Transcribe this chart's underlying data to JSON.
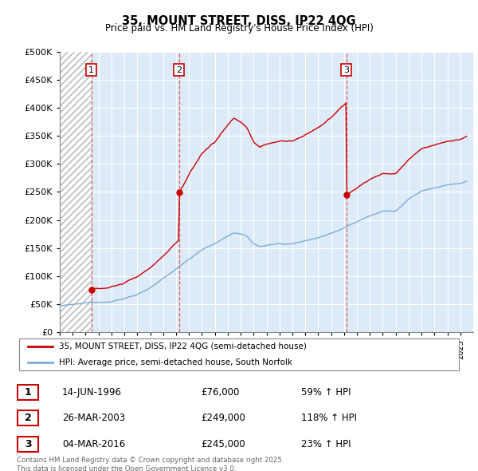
{
  "title": "35, MOUNT STREET, DISS, IP22 4QG",
  "subtitle": "Price paid vs. HM Land Registry's House Price Index (HPI)",
  "ylim": [
    0,
    500000
  ],
  "yticks": [
    0,
    50000,
    100000,
    150000,
    200000,
    250000,
    300000,
    350000,
    400000,
    450000,
    500000
  ],
  "xlim_start": 1994.0,
  "xlim_end": 2026.0,
  "sale_dates": [
    1996.45,
    2003.23,
    2016.17
  ],
  "sale_prices": [
    76000,
    249000,
    245000
  ],
  "sale_labels": [
    "1",
    "2",
    "3"
  ],
  "legend_line1": "35, MOUNT STREET, DISS, IP22 4QG (semi-detached house)",
  "legend_line2": "HPI: Average price, semi-detached house, South Norfolk",
  "annotation_rows": [
    [
      "1",
      "14-JUN-1996",
      "£76,000",
      "59% ↑ HPI"
    ],
    [
      "2",
      "26-MAR-2003",
      "£249,000",
      "118% ↑ HPI"
    ],
    [
      "3",
      "04-MAR-2016",
      "£245,000",
      "23% ↑ HPI"
    ]
  ],
  "footer": "Contains HM Land Registry data © Crown copyright and database right 2025.\nThis data is licensed under the Open Government Licence v3.0.",
  "price_color": "#cc0000",
  "hpi_color": "#7aadd4",
  "vline_color": "#dd4444",
  "chart_bg": "#ddeaf7",
  "hatch_bg": "#ffffff"
}
